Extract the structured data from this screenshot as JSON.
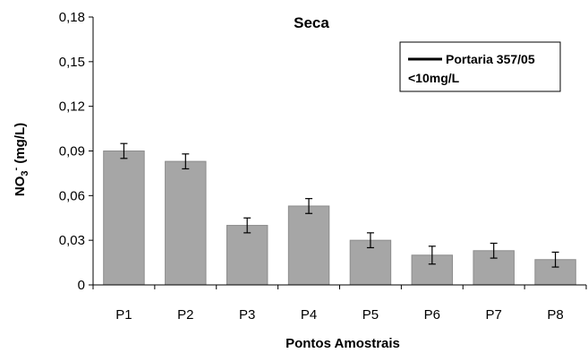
{
  "chart_data": {
    "type": "bar",
    "title": "Seca",
    "xlabel": "Pontos Amostrais",
    "ylabel_main": "NO",
    "ylabel_sub": "3",
    "ylabel_sup": "-",
    "ylabel_rest": " (mg/L)",
    "categories": [
      "P1",
      "P2",
      "P3",
      "P4",
      "P5",
      "P6",
      "P7",
      "P8"
    ],
    "values": [
      0.09,
      0.083,
      0.04,
      0.053,
      0.03,
      0.02,
      0.023,
      0.017
    ],
    "errors": [
      0.005,
      0.005,
      0.005,
      0.005,
      0.005,
      0.006,
      0.005,
      0.005
    ],
    "ylim": [
      0,
      0.18
    ],
    "yticks": [
      0,
      0.03,
      0.06,
      0.09,
      0.12,
      0.15,
      0.18
    ],
    "ytick_labels": [
      "0",
      "0,03",
      "0,06",
      "0,09",
      "0,12",
      "0,15",
      "0,18"
    ],
    "bar_color": "#a6a6a6",
    "bar_edge_color": "#8c8c8c",
    "legend": {
      "line1": "Portaria 357/05",
      "line2": "<10mg/L",
      "placement": "top-right"
    }
  }
}
